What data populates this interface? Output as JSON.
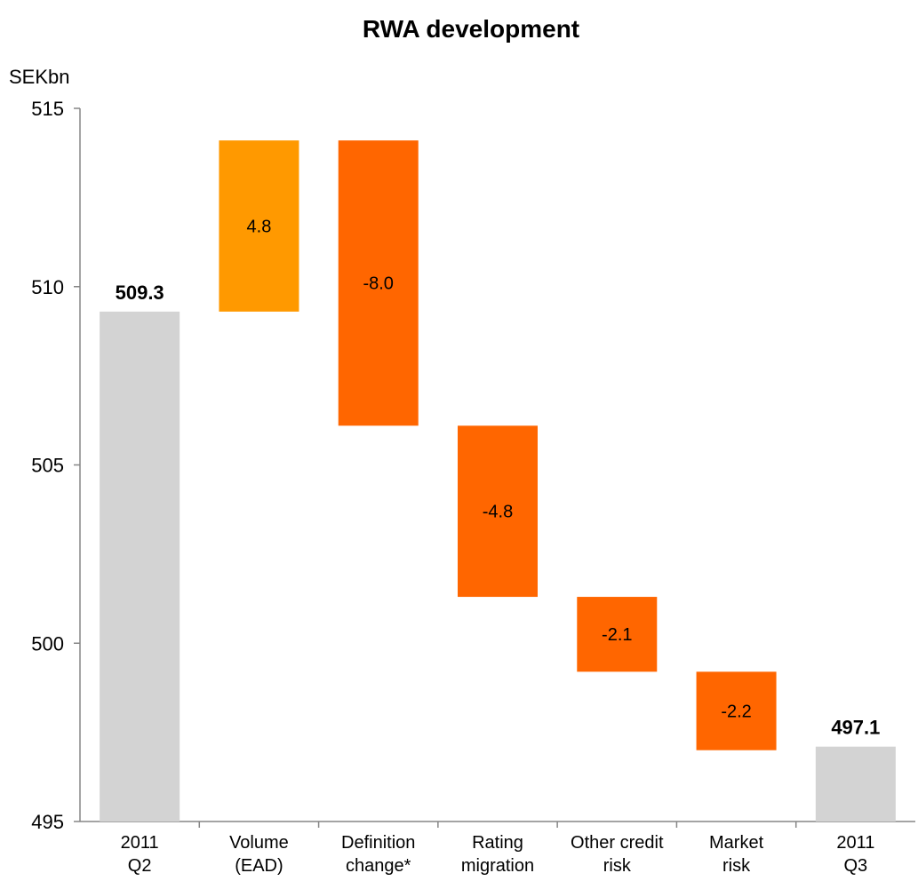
{
  "chart_data": {
    "type": "waterfall",
    "title": "RWA development",
    "y_label": "SEKbn",
    "categories": [
      "2011\nQ2",
      "Volume\n(EAD)",
      "Definition\nchange*",
      "Rating\nmigration",
      "Other credit\nrisk",
      "Market\nrisk",
      "2011\nQ3"
    ],
    "values": [
      509.3,
      4.8,
      -8.0,
      -4.8,
      -2.1,
      -2.2,
      497.1
    ],
    "value_labels": [
      "509.3",
      "4.8",
      "-8.0",
      "-4.8",
      "-2.1",
      "-2.2",
      "497.1"
    ],
    "total_color": "#d3d3d3",
    "increase_color": "#ff9900",
    "decrease_color": "#ff6600",
    "ylim": [
      495,
      515
    ],
    "yticks": [
      495,
      500,
      505,
      510,
      515
    ],
    "grid": false
  }
}
